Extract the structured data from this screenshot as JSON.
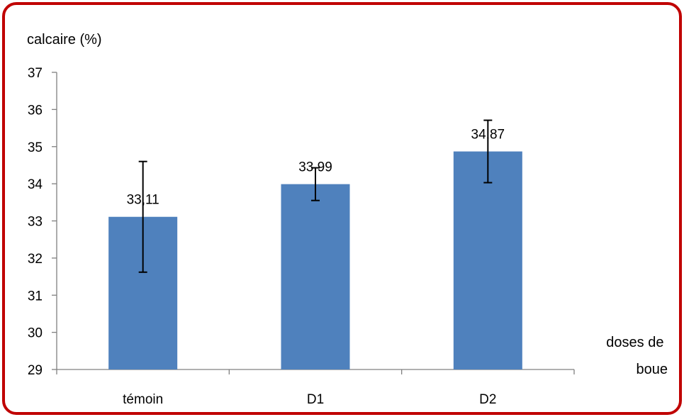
{
  "colors": {
    "frame": "#c00000",
    "bar": "#4f81bd",
    "axis": "#808080",
    "error_bar": "#000000",
    "background": "#ffffff"
  },
  "chart_data": {
    "type": "bar",
    "categories": [
      "témoin",
      "D1",
      "D2"
    ],
    "values": [
      33.11,
      33.99,
      34.87
    ],
    "value_labels": [
      "33,11",
      "33,99",
      "34,87"
    ],
    "error_bars": [
      {
        "low": 31.62,
        "high": 34.6
      },
      {
        "low": 33.55,
        "high": 34.43
      },
      {
        "low": 34.03,
        "high": 35.71
      }
    ],
    "ylabel": "calcaire (%)",
    "xlabel_lines": [
      "doses de",
      "boue"
    ],
    "ylim": [
      29,
      37
    ],
    "yticks": [
      29,
      30,
      31,
      32,
      33,
      34,
      35,
      36,
      37
    ],
    "grid": false,
    "legend": "none"
  }
}
